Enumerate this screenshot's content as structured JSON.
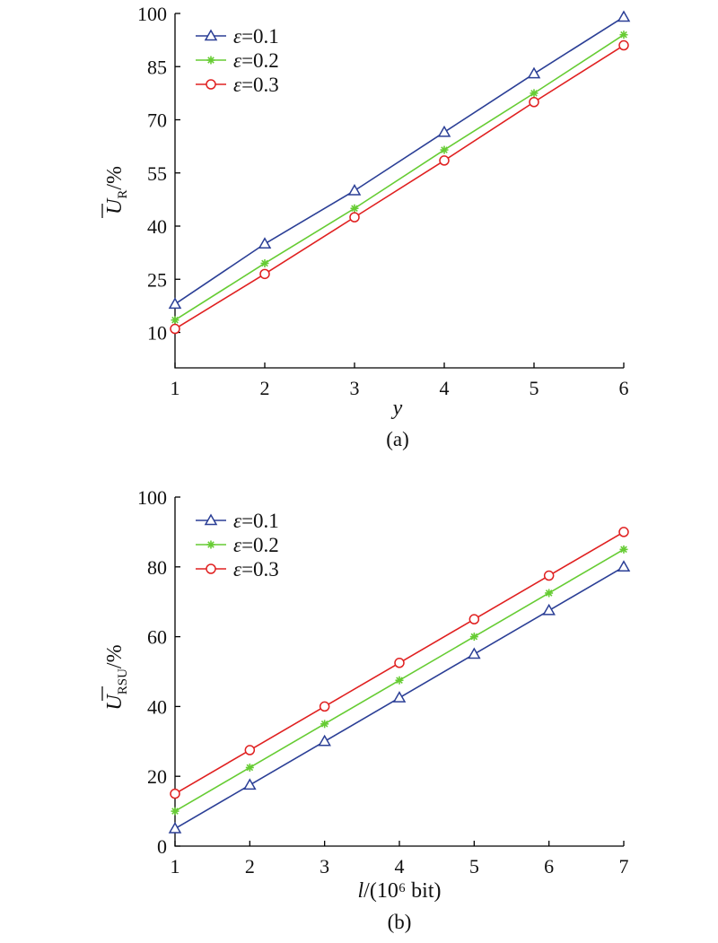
{
  "chart_data": [
    {
      "type": "line",
      "caption": "(a)",
      "xlabel": "y",
      "ylabel": {
        "symbol": "U",
        "subscript": "R",
        "unit": "/%"
      },
      "xlim": [
        1,
        6
      ],
      "ylim": [
        0,
        100
      ],
      "xticks": [
        "1",
        "2",
        "3",
        "4",
        "5",
        "6"
      ],
      "yticks": [
        "10",
        "25",
        "40",
        "55",
        "70",
        "85",
        "100"
      ],
      "ytick_values": [
        10,
        25,
        40,
        55,
        70,
        85,
        100
      ],
      "legend_position": "top-left",
      "grid": false,
      "x": [
        1,
        2,
        3,
        4,
        5,
        6
      ],
      "series": [
        {
          "name": "ε=0.1",
          "color": "#2b3f96",
          "marker": "triangle",
          "values": [
            18,
            35,
            50,
            66.5,
            83,
            99
          ]
        },
        {
          "name": "ε=0.2",
          "color": "#66cc33",
          "marker": "asterisk",
          "values": [
            13.5,
            29.5,
            45,
            61.5,
            77.5,
            94
          ]
        },
        {
          "name": "ε=0.3",
          "color": "#e02020",
          "marker": "circle",
          "values": [
            11,
            26.5,
            42.5,
            58.5,
            75,
            91
          ]
        }
      ]
    },
    {
      "type": "line",
      "caption": "(b)",
      "xlabel": "l/(10⁶ bit)",
      "ylabel": {
        "symbol": "U",
        "subscript": "RSU",
        "unit": "/%"
      },
      "xlim": [
        1,
        7
      ],
      "ylim": [
        0,
        100
      ],
      "xticks": [
        "1",
        "2",
        "3",
        "4",
        "5",
        "6",
        "7"
      ],
      "yticks": [
        "0",
        "20",
        "40",
        "60",
        "80",
        "100"
      ],
      "ytick_values": [
        0,
        20,
        40,
        60,
        80,
        100
      ],
      "legend_position": "top-left",
      "grid": false,
      "x": [
        1,
        2,
        3,
        4,
        5,
        6,
        7
      ],
      "series": [
        {
          "name": "ε=0.1",
          "color": "#2b3f96",
          "marker": "triangle",
          "values": [
            5,
            17.5,
            30,
            42.5,
            55,
            67.5,
            80
          ]
        },
        {
          "name": "ε=0.2",
          "color": "#66cc33",
          "marker": "asterisk",
          "values": [
            10,
            22.5,
            35,
            47.5,
            60,
            72.5,
            85
          ]
        },
        {
          "name": "ε=0.3",
          "color": "#e02020",
          "marker": "circle",
          "values": [
            15,
            27.5,
            40,
            52.5,
            65,
            77.5,
            90
          ]
        }
      ]
    }
  ]
}
